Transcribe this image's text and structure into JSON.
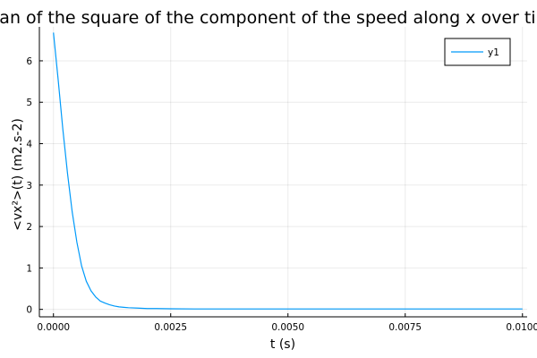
{
  "chart_data": {
    "type": "line",
    "title": "Mean of the square of the component of the speed along x over time",
    "xlabel": "t (s)",
    "ylabel": "<vx²>(t) (m2.s-2)",
    "xlim": [
      -0.0003,
      0.0101
    ],
    "ylim": [
      -0.18,
      6.82
    ],
    "x_ticks": [
      0.0,
      0.0025,
      0.005,
      0.0075,
      0.01
    ],
    "x_tick_labels": [
      "0.0000",
      "0.0025",
      "0.0050",
      "0.0075",
      "0.0100"
    ],
    "y_ticks": [
      0,
      1,
      2,
      3,
      4,
      5,
      6
    ],
    "y_tick_labels": [
      "0",
      "1",
      "2",
      "3",
      "4",
      "5",
      "6"
    ],
    "grid": true,
    "legend_position": "top-right",
    "colors": {
      "series": "#009AFA",
      "axis": "#000000",
      "grid": "#EDEDED"
    },
    "series": [
      {
        "name": "y1",
        "x": [
          0.0,
          0.0001,
          0.0002,
          0.0003,
          0.0004,
          0.0005,
          0.0006,
          0.0007,
          0.0008,
          0.0009,
          0.001,
          0.0011,
          0.0012,
          0.0013,
          0.0014,
          0.0015,
          0.0016,
          0.0018,
          0.002,
          0.0022,
          0.0025,
          0.003,
          0.0035,
          0.004,
          0.005,
          0.006,
          0.007,
          0.008,
          0.009,
          0.01
        ],
        "y": [
          6.68,
          5.55,
          4.35,
          3.28,
          2.35,
          1.62,
          1.05,
          0.68,
          0.45,
          0.3,
          0.2,
          0.15,
          0.11,
          0.08,
          0.06,
          0.05,
          0.04,
          0.03,
          0.02,
          0.02,
          0.015,
          0.01,
          0.01,
          0.01,
          0.01,
          0.01,
          0.01,
          0.01,
          0.01,
          0.01
        ]
      }
    ]
  }
}
